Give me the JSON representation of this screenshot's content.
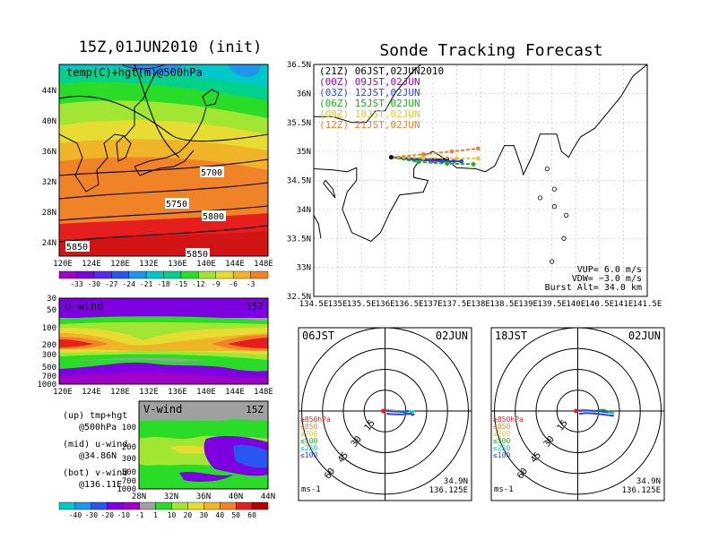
{
  "init_title": "15Z,01JUN2010 (init)",
  "main_title": "Sonde Tracking Forecast",
  "colors": {
    "frame": "#000000",
    "grid": "#c8c8c8",
    "bg": "#ffffff",
    "undef": "#a0a0a0"
  },
  "map500": {
    "label": "temp(C)+hgt(m)@500hPa",
    "lat_labels": [
      "44N",
      "40N",
      "36N",
      "32N",
      "28N",
      "24N"
    ],
    "lon_labels": [
      "120E",
      "124E",
      "128E",
      "132E",
      "136E",
      "140E",
      "144E",
      "148E"
    ],
    "contour_labels": [
      "5700",
      "5750",
      "5800",
      "5850",
      "5850"
    ]
  },
  "temp_colorbar": {
    "labels": [
      "-33",
      "-30",
      "-27",
      "-24",
      "-21",
      "-18",
      "-15",
      "-12",
      "-9",
      "-6",
      "-3"
    ],
    "colors": [
      "#a000c8",
      "#7c00e0",
      "#5a28f0",
      "#2856f0",
      "#1e96f0",
      "#00c8c8",
      "#00d28c",
      "#28dc28",
      "#a0e632",
      "#e6dc32",
      "#f0b428",
      "#f08228"
    ]
  },
  "uwind": {
    "label": "U-wind",
    "time": "15Z",
    "p_labels": [
      "30",
      "50",
      "100",
      "200",
      "300",
      "500",
      "700",
      "1000"
    ],
    "lon_labels": [
      "120E",
      "124E",
      "128E",
      "132E",
      "136E",
      "140E",
      "144E",
      "148E"
    ]
  },
  "legend_text": [
    {
      "line1": "(up) tmp+hgt",
      "line2": "@500hPa"
    },
    {
      "line1": "(mid) u-wind",
      "line2": "@34.86N"
    },
    {
      "line1": "(bot) v-wind",
      "line2": "@136.11E"
    }
  ],
  "vwind": {
    "label": "V-wind",
    "time": "15Z",
    "p_labels": [
      "100",
      "200",
      "300",
      "500",
      "700",
      "1000"
    ],
    "lat_labels": [
      "28N",
      "32N",
      "36N",
      "40N",
      "44N"
    ]
  },
  "wind_colorbar": {
    "labels": [
      "-40",
      "-30",
      "-20",
      "-10",
      "-1",
      "1",
      "10",
      "20",
      "30",
      "40",
      "50",
      "60"
    ],
    "colors": [
      "#00c8c8",
      "#1e96f0",
      "#2856f0",
      "#7c00e0",
      "#a000c8",
      "#a0a0a0",
      "#28dc28",
      "#a0e632",
      "#e6dc32",
      "#f0b428",
      "#f08228",
      "#e61e1e",
      "#b40000"
    ]
  },
  "track": {
    "legend": [
      {
        "text": "(21Z)  06JST,02JUN2010",
        "color": "#000000"
      },
      {
        "text": "(00Z)  09JST,02JUN",
        "color": "#a000c8"
      },
      {
        "text": "(03Z)  12JST,02JUN",
        "color": "#2846f0"
      },
      {
        "text": "(06Z)  15JST,02JUN",
        "color": "#14b414"
      },
      {
        "text": "(09Z)  18JST,02JUN",
        "color": "#e6c828"
      },
      {
        "text": "(12Z)  21JST,02JUN",
        "color": "#f08228"
      }
    ],
    "lat_labels": [
      "36.5N",
      "36N",
      "35.5N",
      "35N",
      "34.5N",
      "34N",
      "33.5N",
      "33N",
      "32.5N"
    ],
    "lon_labels": [
      "134.5E",
      "135E",
      "135.5E",
      "136E",
      "136.5E",
      "137E",
      "137.5E",
      "138E",
      "138.5E",
      "139E",
      "139.5E",
      "140E",
      "140.5E",
      "141E",
      "141.5E"
    ],
    "params": [
      "VUP=  6.0  m/s",
      "VDW=  −3.0  m/s",
      "Burst Alt=  34.0  km"
    ]
  },
  "chart_data": {
    "type": "line",
    "title": "Sonde Tracking Forecast",
    "x_axis": {
      "range": [
        134.5,
        141.5
      ],
      "unit": "deg E"
    },
    "y_axis": {
      "range": [
        32.5,
        36.5
      ],
      "unit": "deg N"
    },
    "grid": true,
    "legend_placement": "top-left",
    "launch_point": {
      "lat": 34.9,
      "lon": 136.125
    },
    "series": [
      {
        "name": "(21Z)  06JST,02JUN2010",
        "color": "#000000",
        "x": [
          136.125,
          136.5,
          137.0,
          137.3
        ],
        "y": [
          34.9,
          34.88,
          34.85,
          34.87
        ]
      },
      {
        "name": "(00Z)  09JST,02JUN",
        "color": "#a000c8",
        "x": [
          136.125,
          136.5,
          137.0,
          137.45
        ],
        "y": [
          34.9,
          34.87,
          34.84,
          34.83
        ]
      },
      {
        "name": "(03Z)  12JST,02JUN",
        "color": "#2846f0",
        "x": [
          136.125,
          136.6,
          137.2,
          137.6
        ],
        "y": [
          34.9,
          34.86,
          34.83,
          34.83
        ]
      },
      {
        "name": "(06Z)  15JST,02JUN",
        "color": "#14b414",
        "x": [
          136.125,
          136.7,
          137.3,
          137.85
        ],
        "y": [
          34.9,
          34.82,
          34.79,
          34.78
        ]
      },
      {
        "name": "(09Z)  18JST,02JUN",
        "color": "#e6c828",
        "x": [
          136.125,
          136.8,
          137.5,
          137.95
        ],
        "y": [
          34.9,
          34.89,
          34.88,
          34.88
        ]
      },
      {
        "name": "(12Z)  21JST,02JUN",
        "color": "#f08228",
        "x": [
          136.125,
          136.8,
          137.4,
          137.95
        ],
        "y": [
          34.9,
          34.95,
          35.0,
          35.05
        ]
      }
    ]
  },
  "hodographs": [
    {
      "time": "06JST",
      "date": "02JUN",
      "unit": "ms-1",
      "lat": "34.9N",
      "lon": "136.125E",
      "ring_labels": [
        "15",
        "30",
        "45",
        "60"
      ],
      "levels": [
        {
          "label": "≥850hPa",
          "color": "#e61e1e"
        },
        {
          "label": "≤850",
          "color": "#f08228"
        },
        {
          "label": "≤700",
          "color": "#e6c828"
        },
        {
          "label": "≤500",
          "color": "#14b414"
        },
        {
          "label": "≤250",
          "color": "#00c8c8"
        },
        {
          "label": "≤100",
          "color": "#2846f0"
        }
      ],
      "profile_u": [
        -0.5,
        1,
        3,
        6,
        9,
        12,
        14,
        16,
        18,
        19,
        21,
        17,
        12,
        6,
        1
      ],
      "profile_v": [
        0,
        0.5,
        1,
        0.5,
        0,
        -0.5,
        -1,
        -1.5,
        -2,
        -1,
        -0.5,
        0,
        -0.5,
        -0.3,
        0
      ]
    },
    {
      "time": "18JST",
      "date": "02JUN",
      "unit": "ms-1",
      "lat": "34.9N",
      "lon": "136.125E",
      "ring_labels": [
        "15",
        "30",
        "45",
        "60"
      ],
      "levels": [
        {
          "label": "≥850hPa",
          "color": "#e61e1e"
        },
        {
          "label": "≤850",
          "color": "#f08228"
        },
        {
          "label": "≤700",
          "color": "#e6c828"
        },
        {
          "label": "≤500",
          "color": "#14b414"
        },
        {
          "label": "≤250",
          "color": "#00c8c8"
        },
        {
          "label": "≤100",
          "color": "#2846f0"
        }
      ],
      "profile_u": [
        -0.5,
        1,
        4,
        8,
        12,
        15,
        18,
        20,
        22,
        24,
        26,
        22,
        14,
        6,
        1
      ],
      "profile_v": [
        0,
        0.5,
        1,
        0,
        -0.5,
        0.5,
        1,
        0.5,
        -0.5,
        -1,
        -1.5,
        -1,
        0,
        0.5,
        0
      ]
    }
  ]
}
